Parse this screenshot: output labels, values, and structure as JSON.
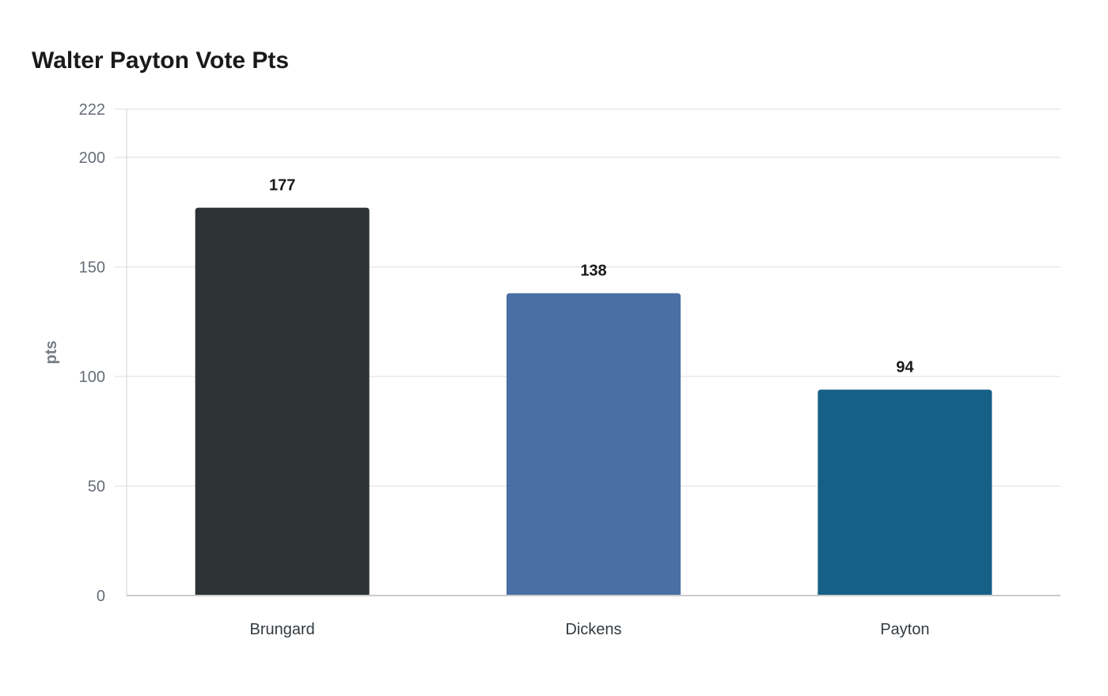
{
  "chart_data": {
    "type": "bar",
    "title": "Walter Payton Vote Pts",
    "xlabel": "",
    "ylabel": "pts",
    "categories": [
      "Brungard",
      "Dickens",
      "Payton"
    ],
    "values": [
      177,
      138,
      94
    ],
    "colors": [
      "#2d3436",
      "#4a6fa5",
      "#166088"
    ],
    "ylim": [
      0,
      222
    ],
    "yticks": [
      0,
      50,
      100,
      150,
      200,
      222
    ],
    "grid": true,
    "data_labels": [
      "177",
      "138",
      "94"
    ]
  }
}
